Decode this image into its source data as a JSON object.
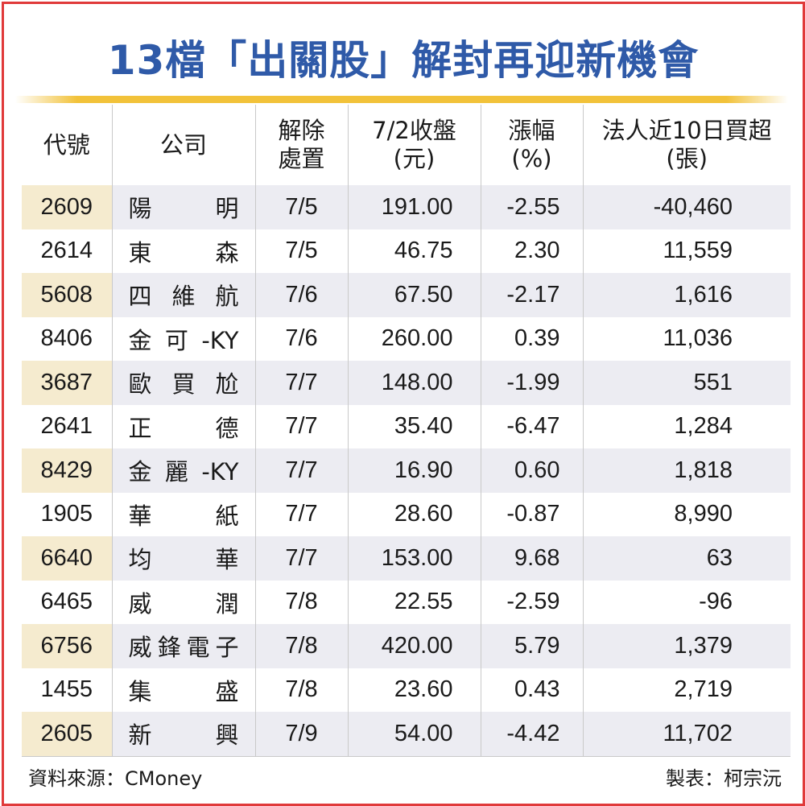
{
  "title": "13檔「出關股」解封再迎新機會",
  "colors": {
    "title": "#2f5aa8",
    "accent_rule": "#f2c23a",
    "border": "#e03a3a",
    "row_shade": "#ececf2",
    "code_shade": "#f5ebcf"
  },
  "headers": [
    [
      "代號"
    ],
    [
      "公司"
    ],
    [
      "解除",
      "處置"
    ],
    [
      "7/2收盤",
      "(元)"
    ],
    [
      "漲幅",
      "(%)"
    ],
    [
      "法人近10日買超",
      "(張)"
    ]
  ],
  "rows": [
    [
      "2609",
      "陽　明",
      "7/5",
      "191.00",
      "-2.55",
      "-40,460"
    ],
    [
      "2614",
      "東　森",
      "7/5",
      "46.75",
      "2.30",
      "11,559"
    ],
    [
      "5608",
      "四維航",
      "7/6",
      "67.50",
      "-2.17",
      "1,616"
    ],
    [
      "8406",
      "金可-KY",
      "7/6",
      "260.00",
      "0.39",
      "11,036"
    ],
    [
      "3687",
      "歐買尬",
      "7/7",
      "148.00",
      "-1.99",
      "551"
    ],
    [
      "2641",
      "正　德",
      "7/7",
      "35.40",
      "-6.47",
      "1,284"
    ],
    [
      "8429",
      "金麗-KY",
      "7/7",
      "16.90",
      "0.60",
      "1,818"
    ],
    [
      "1905",
      "華　紙",
      "7/7",
      "28.60",
      "-0.87",
      "8,990"
    ],
    [
      "6640",
      "均　華",
      "7/7",
      "153.00",
      "9.68",
      "63"
    ],
    [
      "6465",
      "威　潤",
      "7/8",
      "22.55",
      "-2.59",
      "-96"
    ],
    [
      "6756",
      "威鋒電子",
      "7/8",
      "420.00",
      "5.79",
      "1,379"
    ],
    [
      "1455",
      "集　盛",
      "7/8",
      "23.60",
      "0.43",
      "2,719"
    ],
    [
      "2605",
      "新　興",
      "7/9",
      "54.00",
      "-4.42",
      "11,702"
    ]
  ],
  "footer": {
    "source": "資料來源：CMoney",
    "author": "製表：柯宗沅"
  }
}
